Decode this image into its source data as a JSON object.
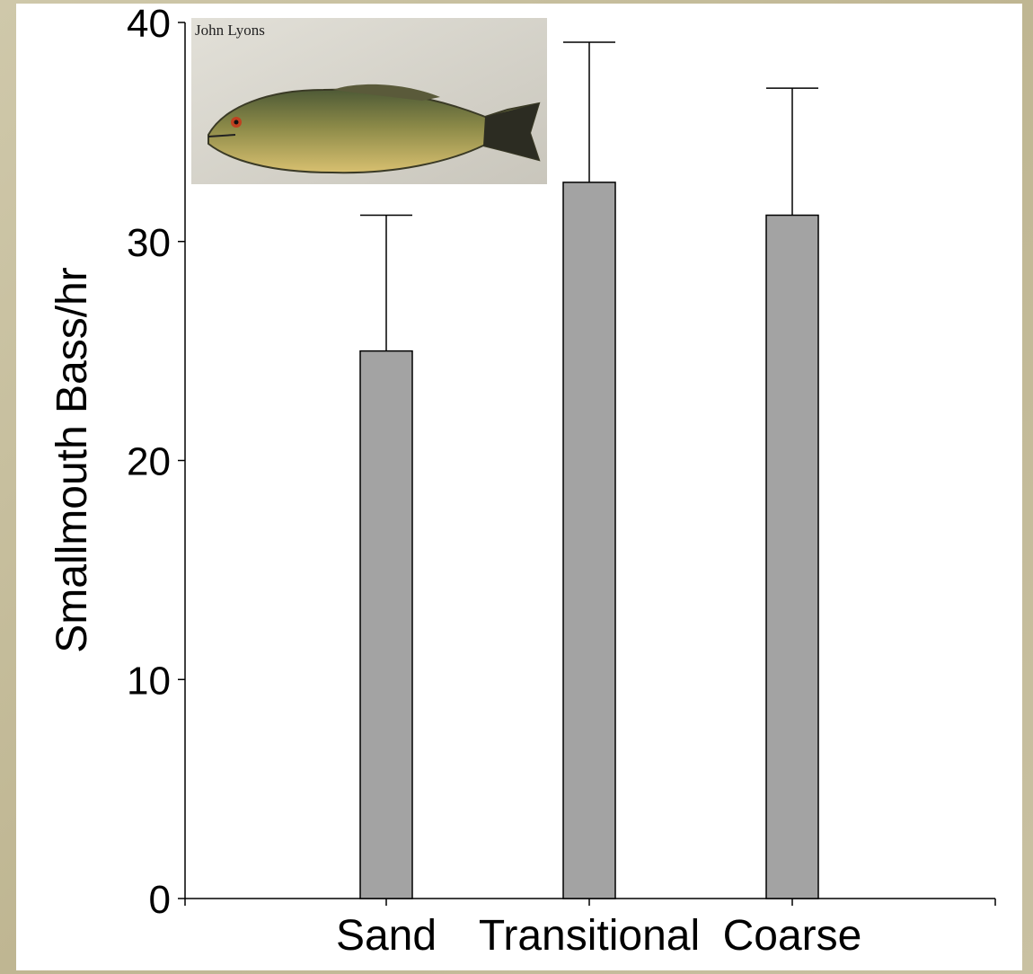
{
  "chart_data": {
    "type": "bar",
    "title": "",
    "xlabel": "",
    "ylabel": "Smallmouth Bass/hr",
    "categories": [
      "Sand",
      "Transitional",
      "Coarse"
    ],
    "values": [
      25.0,
      32.7,
      31.2
    ],
    "error_upper": [
      31.2,
      39.1,
      37.0
    ],
    "ylim": [
      0,
      40
    ],
    "yticks": [
      0,
      10,
      20,
      30,
      40
    ],
    "bar_color": "#a3a3a3",
    "grid": false,
    "legend": "none"
  },
  "photo": {
    "subject": "smallmouth-bass",
    "credit": "John Lyons"
  },
  "colors": {
    "background": "#c7bea0",
    "panel": "#ffffff",
    "bar": "#a3a3a3"
  }
}
